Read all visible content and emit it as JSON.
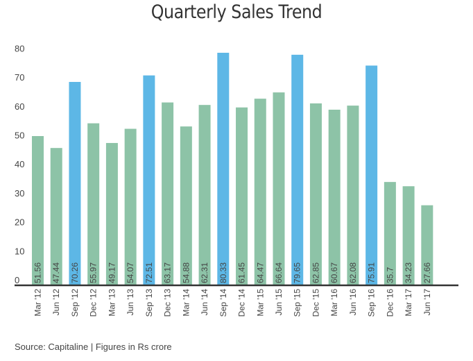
{
  "chart_data": {
    "type": "bar",
    "title": "Quarterly Sales Trend",
    "xlabel": "",
    "ylabel": "",
    "ylim": [
      0,
      80
    ],
    "yticks": [
      0,
      10,
      20,
      30,
      40,
      50,
      60,
      70,
      80
    ],
    "grid": false,
    "legend": "none",
    "categories": [
      "Mar '12",
      "Jun '12",
      "Sep '12",
      "Dec '12",
      "Mar '13",
      "Jun '13",
      "Sep '13",
      "Dec '13",
      "Mar '14",
      "Jun '14",
      "Sep '14",
      "Dec '14",
      "Mar '15",
      "Jun '15",
      "Sep '15",
      "Dec '15",
      "Mar '16",
      "Jun '16",
      "Sep '16",
      "Dec '16",
      "Mar '17",
      "Jun '17"
    ],
    "values": [
      51.56,
      47.44,
      70.26,
      55.97,
      49.17,
      54.07,
      72.51,
      63.17,
      54.88,
      62.31,
      80.33,
      61.45,
      64.47,
      66.64,
      79.65,
      62.85,
      60.67,
      62.08,
      75.91,
      35.7,
      34.23,
      27.66
    ],
    "data_labels": [
      "51.56",
      "47.44",
      "70.26",
      "55.97",
      "49.17",
      "54.07",
      "72.51",
      "63.17",
      "54.88",
      "62.31",
      "80.33",
      "61.45",
      "64.47",
      "66.64",
      "79.65",
      "62.85",
      "60.67",
      "62.08",
      "75.91",
      "35.7",
      "34.23",
      "27.66"
    ],
    "highlight": [
      false,
      false,
      true,
      false,
      false,
      false,
      true,
      false,
      false,
      false,
      true,
      false,
      false,
      false,
      true,
      false,
      false,
      false,
      true,
      false,
      false,
      false
    ],
    "colors": {
      "default": "#8DC3A7",
      "highlight": "#5DB7E6",
      "axis": "#333333",
      "text": "#444444"
    }
  },
  "footer": {
    "source": "Source: Capitaline | Figures in Rs crore"
  }
}
